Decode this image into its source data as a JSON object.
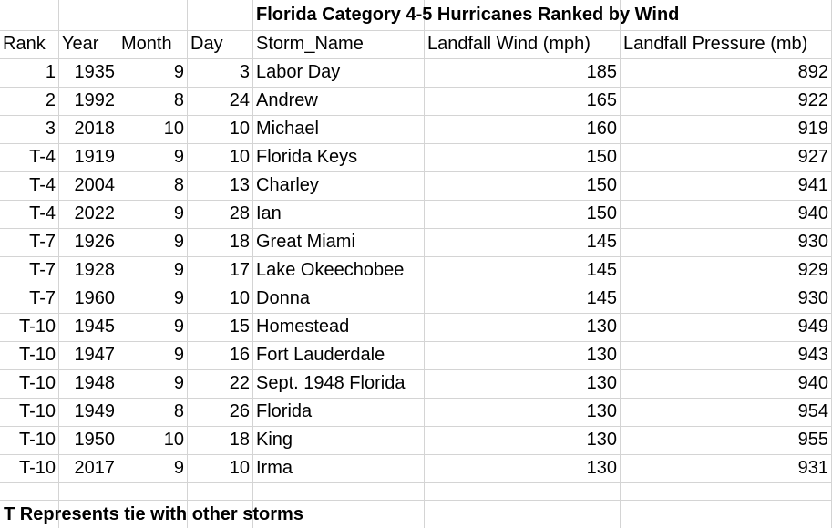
{
  "title": "Florida Category 4-5 Hurricanes Ranked by Wind",
  "headers": [
    "Rank",
    "Year",
    "Month",
    "Day",
    "Storm_Name",
    "Landfall Wind (mph)",
    "Landfall Pressure (mb)"
  ],
  "rows": [
    [
      "1",
      "1935",
      "9",
      "3",
      "Labor Day",
      "185",
      "892"
    ],
    [
      "2",
      "1992",
      "8",
      "24",
      "Andrew",
      "165",
      "922"
    ],
    [
      "3",
      "2018",
      "10",
      "10",
      "Michael",
      "160",
      "919"
    ],
    [
      "T-4",
      "1919",
      "9",
      "10",
      "Florida Keys",
      "150",
      "927"
    ],
    [
      "T-4",
      "2004",
      "8",
      "13",
      "Charley",
      "150",
      "941"
    ],
    [
      "T-4",
      "2022",
      "9",
      "28",
      "Ian",
      "150",
      "940"
    ],
    [
      "T-7",
      "1926",
      "9",
      "18",
      "Great Miami",
      "145",
      "930"
    ],
    [
      "T-7",
      "1928",
      "9",
      "17",
      "Lake Okeechobee",
      "145",
      "929"
    ],
    [
      "T-7",
      "1960",
      "9",
      "10",
      "Donna",
      "145",
      "930"
    ],
    [
      "T-10",
      "1945",
      "9",
      "15",
      "Homestead",
      "130",
      "949"
    ],
    [
      "T-10",
      "1947",
      "9",
      "16",
      "Fort Lauderdale",
      "130",
      "943"
    ],
    [
      "T-10",
      "1948",
      "9",
      "22",
      "Sept. 1948 Florida",
      "130",
      "940"
    ],
    [
      "T-10",
      "1949",
      "8",
      "26",
      "Florida",
      "130",
      "954"
    ],
    [
      "T-10",
      "1950",
      "10",
      "18",
      "King",
      "130",
      "955"
    ],
    [
      "T-10",
      "2017",
      "9",
      "10",
      "Irma",
      "130",
      "931"
    ]
  ],
  "note": "T Represents tie with other storms"
}
